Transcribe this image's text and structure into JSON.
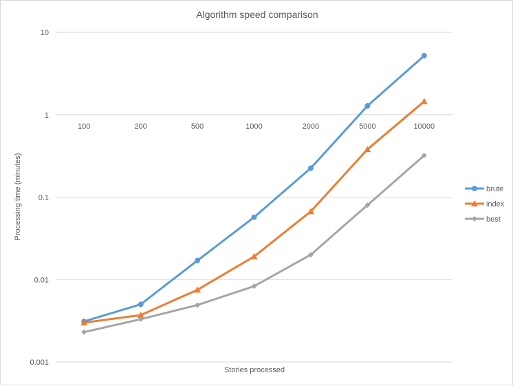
{
  "chart_data": {
    "type": "line",
    "title": "Algorithm speed comparison",
    "xlabel": "Stories processed",
    "ylabel": "Processing time (minutes)",
    "y_scale": "log",
    "ylim": [
      0.001,
      10
    ],
    "y_ticks": [
      "0.001",
      "0.01",
      "0.1",
      "1",
      "10"
    ],
    "categories": [
      "100",
      "200",
      "500",
      "1000",
      "2000",
      "5000",
      "10000"
    ],
    "grid": true,
    "legend_position": "right",
    "series": [
      {
        "name": "brute",
        "color": "#5b9bd5",
        "marker": "circle",
        "values": [
          0.0031,
          0.005,
          0.017,
          0.057,
          0.225,
          1.28,
          5.2
        ]
      },
      {
        "name": "index",
        "color": "#ed7d31",
        "marker": "triangle",
        "values": [
          0.003,
          0.0037,
          0.0075,
          0.019,
          0.067,
          0.38,
          1.45
        ]
      },
      {
        "name": "best",
        "color": "#a5a5a5",
        "marker": "diamond",
        "values": [
          0.0023,
          0.0033,
          0.0049,
          0.0083,
          0.02,
          0.08,
          0.32
        ]
      }
    ]
  }
}
